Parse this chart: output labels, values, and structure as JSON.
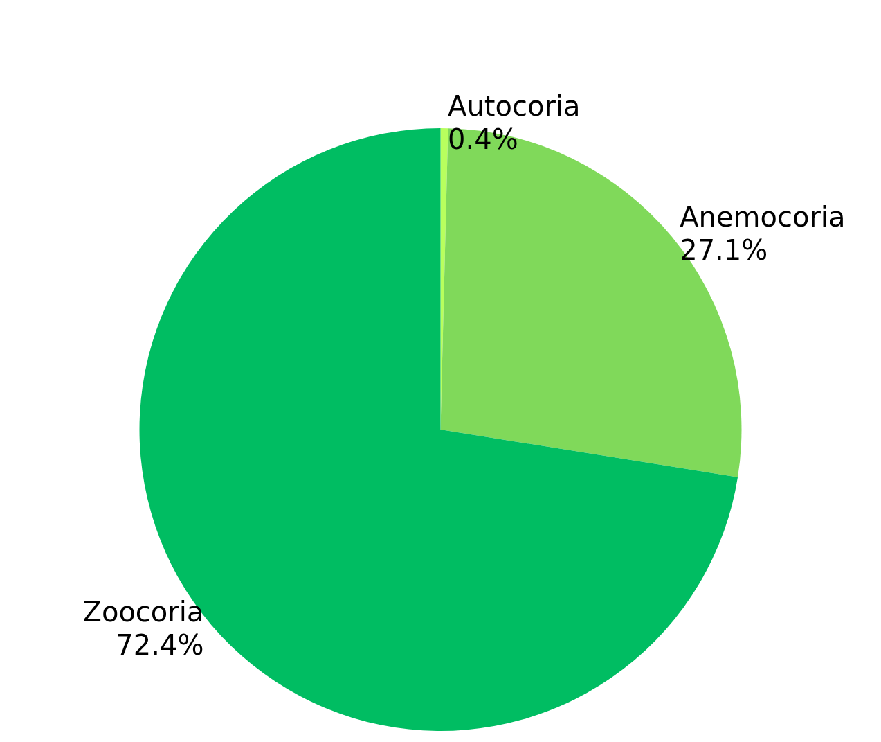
{
  "chart_data": {
    "type": "pie",
    "categories": [
      "Autocoria",
      "Anemocoria",
      "Zoocoria"
    ],
    "values": [
      0.4,
      27.1,
      72.4
    ],
    "value_labels": [
      "0.4%",
      "27.1%",
      "72.4%"
    ],
    "colors": [
      "#b8ff5e",
      "#80d95a",
      "#00bd62"
    ],
    "legend": false
  }
}
